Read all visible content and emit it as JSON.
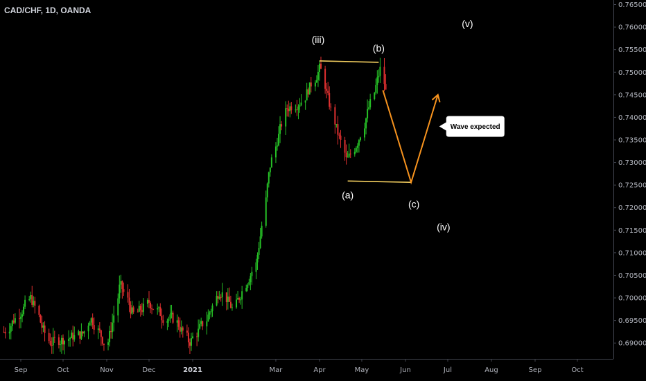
{
  "header": {
    "symbol": "CAD/CHF, 1D, OANDA"
  },
  "colors": {
    "up": "#26c026",
    "down": "#e03030",
    "annotation_line": "#f5d060",
    "projection": "#f7931e",
    "text": "#ffffff",
    "background": "#000000"
  },
  "chart_data": {
    "type": "candlestick",
    "symbol": "CAD/CHF",
    "interval": "1D",
    "source": "OANDA",
    "ylim": [
      0.6865,
      0.766
    ],
    "y_ticks": [
      "0.76500",
      "0.76000",
      "0.75500",
      "0.75000",
      "0.74500",
      "0.74000",
      "0.73500",
      "0.73000",
      "0.72500",
      "0.72000",
      "0.71500",
      "0.71000",
      "0.70500",
      "0.70000",
      "0.69500",
      "0.69000"
    ],
    "x_ticks": [
      {
        "label": "Sep",
        "date": "2020-09-01",
        "bold": false
      },
      {
        "label": "Oct",
        "date": "2020-10-01",
        "bold": false
      },
      {
        "label": "Nov",
        "date": "2020-11-01",
        "bold": false
      },
      {
        "label": "Dec",
        "date": "2020-12-01",
        "bold": false
      },
      {
        "label": "2021",
        "date": "2021-01-01",
        "bold": true
      },
      {
        "label": "Mar",
        "date": "2021-03-01",
        "bold": false
      },
      {
        "label": "Apr",
        "date": "2021-04-01",
        "bold": false
      },
      {
        "label": "May",
        "date": "2021-05-01",
        "bold": false
      },
      {
        "label": "Jun",
        "date": "2021-06-01",
        "bold": false
      },
      {
        "label": "Jul",
        "date": "2021-07-01",
        "bold": false
      },
      {
        "label": "Aug",
        "date": "2021-08-01",
        "bold": false
      },
      {
        "label": "Sep",
        "date": "2021-09-01",
        "bold": false
      },
      {
        "label": "Oct",
        "date": "2021-10-01",
        "bold": false
      }
    ],
    "candles": {
      "start_date": "2020-08-20",
      "end_date": "2021-05-18",
      "close_path": [
        [
          "2020-08-20",
          0.6925
        ],
        [
          "2020-09-08",
          0.7
        ],
        [
          "2020-09-20",
          0.69
        ],
        [
          "2020-10-15",
          0.692
        ],
        [
          "2020-10-20",
          0.696
        ],
        [
          "2020-11-01",
          0.689
        ],
        [
          "2020-11-10",
          0.703
        ],
        [
          "2020-11-20",
          0.696
        ],
        [
          "2020-12-01",
          0.699
        ],
        [
          "2020-12-10",
          0.696
        ],
        [
          "2020-12-20",
          0.695
        ],
        [
          "2020-12-29",
          0.69
        ],
        [
          "2021-01-10",
          0.695
        ],
        [
          "2021-01-20",
          0.702
        ],
        [
          "2021-01-30",
          0.697
        ],
        [
          "2021-02-05",
          0.702
        ],
        [
          "2021-02-15",
          0.708
        ],
        [
          "2021-02-25",
          0.73
        ],
        [
          "2021-03-08",
          0.742
        ],
        [
          "2021-03-20",
          0.744
        ],
        [
          "2021-04-01",
          0.751
        ],
        [
          "2021-04-10",
          0.74
        ],
        [
          "2021-04-20",
          0.73
        ],
        [
          "2021-04-28",
          0.735
        ],
        [
          "2021-05-10",
          0.746
        ],
        [
          "2021-05-14",
          0.751
        ],
        [
          "2021-05-18",
          0.745
        ]
      ]
    },
    "annotations": {
      "waves": [
        {
          "label": "(iii)",
          "date": "2021-03-31",
          "price": 0.7565
        },
        {
          "label": "(b)",
          "date": "2021-05-13",
          "price": 0.7546
        },
        {
          "label": "(a)",
          "date": "2021-04-21",
          "price": 0.722
        },
        {
          "label": "(c)",
          "date": "2021-06-07",
          "price": 0.72
        },
        {
          "label": "(iv)",
          "date": "2021-06-28",
          "price": 0.715
        },
        {
          "label": "(v)",
          "date": "2021-07-15",
          "price": 0.76
        }
      ],
      "lines": [
        {
          "from": {
            "date": "2021-04-01",
            "price": 0.7525
          },
          "to": {
            "date": "2021-05-13",
            "price": 0.7522
          }
        },
        {
          "from": {
            "date": "2021-04-21",
            "price": 0.7259
          },
          "to": {
            "date": "2021-06-05",
            "price": 0.7256
          }
        }
      ],
      "projection": [
        {
          "date": "2021-05-16",
          "price": 0.746
        },
        {
          "date": "2021-06-05",
          "price": 0.7256
        },
        {
          "date": "2021-06-24",
          "price": 0.745
        }
      ],
      "callout": {
        "text": "Wave expected",
        "date": "2021-06-24",
        "price": 0.738
      }
    }
  }
}
